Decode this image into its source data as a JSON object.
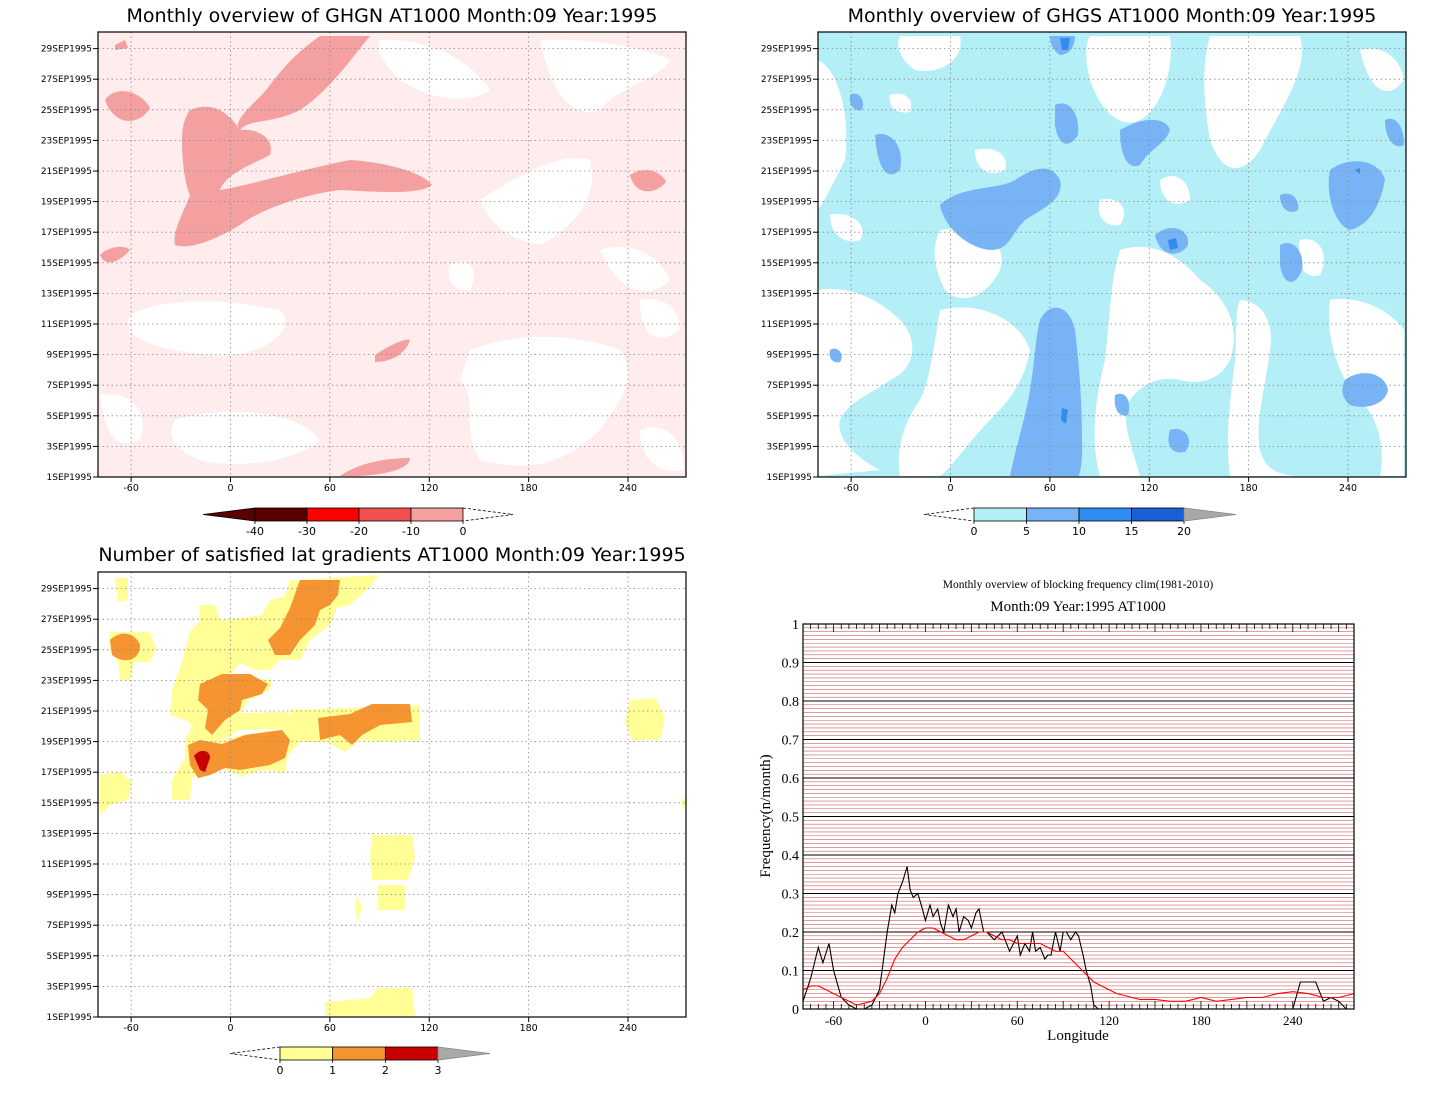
{
  "chart_data": [
    {
      "type": "heatmap",
      "title": "Monthly overview of GHGN AT1000 Month:09 Year:1995",
      "x_ticks": [
        "-60",
        "0",
        "60",
        "120",
        "180",
        "240"
      ],
      "y_ticks": [
        "1SEP1995",
        "3SEP1995",
        "5SEP1995",
        "7SEP1995",
        "9SEP1995",
        "11SEP1995",
        "13SEP1995",
        "15SEP1995",
        "17SEP1995",
        "19SEP1995",
        "21SEP1995",
        "23SEP1995",
        "25SEP1995",
        "27SEP1995",
        "29SEP1995"
      ],
      "xlim": [
        -80,
        275
      ],
      "colorbar": {
        "labels": [
          "-40",
          "-30",
          "-20",
          "-10",
          "0"
        ],
        "colors": [
          "#5a0000",
          "#ff0000",
          "#f25050",
          "#f5a0a0",
          "#ffeaea"
        ],
        "min_arrow": "#5a0000",
        "max_arrow": "none"
      },
      "regions_legend": {
        "background": "#ffecec",
        "strong": "#f5a0a0",
        "zero": "#ffffff"
      }
    },
    {
      "type": "heatmap",
      "title": "Monthly overview of GHGS AT1000 Month:09 Year:1995",
      "x_ticks": [
        "-60",
        "0",
        "60",
        "120",
        "180",
        "240"
      ],
      "y_ticks": [
        "1SEP1995",
        "3SEP1995",
        "5SEP1995",
        "7SEP1995",
        "9SEP1995",
        "11SEP1995",
        "13SEP1995",
        "15SEP1995",
        "17SEP1995",
        "19SEP1995",
        "21SEP1995",
        "23SEP1995",
        "25SEP1995",
        "27SEP1995",
        "29SEP1995"
      ],
      "xlim": [
        -80,
        275
      ],
      "colorbar": {
        "labels": [
          "0",
          "5",
          "10",
          "15",
          "20"
        ],
        "colors": [
          "#b4eef7",
          "#78b4f5",
          "#2f8cf0",
          "#1a5fd6"
        ],
        "min_arrow": "none",
        "max_arrow": "#a8a8a8"
      }
    },
    {
      "type": "heatmap",
      "title": "Number of satisfied lat gradients AT1000 Month:09 Year:1995",
      "x_ticks": [
        "-60",
        "0",
        "60",
        "120",
        "180",
        "240"
      ],
      "y_ticks": [
        "1SEP1995",
        "3SEP1995",
        "5SEP1995",
        "7SEP1995",
        "9SEP1995",
        "11SEP1995",
        "13SEP1995",
        "15SEP1995",
        "17SEP1995",
        "19SEP1995",
        "21SEP1995",
        "23SEP1995",
        "25SEP1995",
        "27SEP1995",
        "29SEP1995"
      ],
      "xlim": [
        -80,
        275
      ],
      "colorbar": {
        "labels": [
          "0",
          "1",
          "2",
          "3"
        ],
        "colors": [
          "#ffff96",
          "#f79432",
          "#c80000"
        ],
        "min_arrow": "none",
        "max_arrow": "#a8a8a8"
      }
    },
    {
      "type": "line",
      "title": "Monthly overview of blocking frequency clim(1981-2010)",
      "subtitle": "Month:09 Year:1995  AT1000",
      "xlabel": "Longitude",
      "ylabel": "Frequency(n/month)",
      "x_ticks": [
        "-60",
        "0",
        "60",
        "120",
        "180",
        "240"
      ],
      "y_ticks": [
        "0",
        "0.1",
        "0.2",
        "0.3",
        "0.4",
        "0.5",
        "0.6",
        "0.7",
        "0.8",
        "0.9",
        "1"
      ],
      "xlim": [
        -80,
        280
      ],
      "ylim": [
        0,
        1
      ],
      "series": [
        {
          "color": "#000000",
          "x": [
            -80,
            -75,
            -70,
            -67,
            -63,
            -60,
            -55,
            -50,
            -45,
            -40,
            -35,
            -30,
            -25,
            -22,
            -20,
            -18,
            -15,
            -12,
            -10,
            -8,
            -5,
            -2,
            0,
            3,
            5,
            8,
            10,
            12,
            15,
            18,
            20,
            22,
            25,
            28,
            30,
            33,
            35,
            38,
            40,
            45,
            50,
            55,
            60,
            62,
            65,
            68,
            70,
            72,
            75,
            78,
            80,
            82,
            85,
            88,
            90,
            92,
            95,
            98,
            100,
            103,
            105,
            108,
            110,
            113,
            115,
            117,
            120,
            125,
            130,
            135,
            140,
            150,
            160,
            170,
            180,
            190,
            200,
            210,
            220,
            230,
            240,
            245,
            250,
            255,
            260,
            265,
            270,
            275
          ],
          "y": [
            0.02,
            0.08,
            0.16,
            0.12,
            0.17,
            0.1,
            0.03,
            0.01,
            0.0,
            0.0,
            0.01,
            0.05,
            0.2,
            0.27,
            0.25,
            0.3,
            0.33,
            0.37,
            0.31,
            0.29,
            0.3,
            0.26,
            0.23,
            0.27,
            0.24,
            0.26,
            0.22,
            0.2,
            0.27,
            0.24,
            0.26,
            0.2,
            0.24,
            0.23,
            0.21,
            0.25,
            0.26,
            0.2,
            0.2,
            0.18,
            0.2,
            0.15,
            0.19,
            0.14,
            0.17,
            0.15,
            0.2,
            0.15,
            0.16,
            0.13,
            0.14,
            0.14,
            0.2,
            0.15,
            0.2,
            0.2,
            0.18,
            0.2,
            0.19,
            0.14,
            0.1,
            0.06,
            0.01,
            0.0,
            0.0,
            0.0,
            0.0,
            0.0,
            0.0,
            0.0,
            0.0,
            0.0,
            0.0,
            0.0,
            0.0,
            0.0,
            0.0,
            0.0,
            0.0,
            0.0,
            0.0,
            0.07,
            0.07,
            0.07,
            0.02,
            0.03,
            0.02,
            0.0
          ]
        },
        {
          "color": "#ff0000",
          "x": [
            -80,
            -75,
            -70,
            -65,
            -60,
            -55,
            -50,
            -45,
            -40,
            -35,
            -30,
            -25,
            -20,
            -15,
            -10,
            -5,
            0,
            5,
            10,
            15,
            20,
            25,
            30,
            35,
            40,
            45,
            50,
            55,
            60,
            65,
            70,
            75,
            80,
            85,
            90,
            95,
            100,
            105,
            110,
            115,
            120,
            125,
            130,
            135,
            140,
            150,
            160,
            170,
            180,
            190,
            200,
            210,
            220,
            230,
            240,
            250,
            260,
            270,
            280
          ],
          "y": [
            0.05,
            0.06,
            0.06,
            0.05,
            0.04,
            0.03,
            0.02,
            0.01,
            0.015,
            0.02,
            0.04,
            0.08,
            0.13,
            0.16,
            0.18,
            0.2,
            0.21,
            0.21,
            0.2,
            0.19,
            0.18,
            0.18,
            0.19,
            0.2,
            0.2,
            0.19,
            0.18,
            0.18,
            0.17,
            0.17,
            0.17,
            0.17,
            0.16,
            0.15,
            0.15,
            0.13,
            0.11,
            0.09,
            0.07,
            0.06,
            0.05,
            0.04,
            0.035,
            0.03,
            0.025,
            0.025,
            0.02,
            0.02,
            0.03,
            0.02,
            0.025,
            0.03,
            0.03,
            0.04,
            0.045,
            0.04,
            0.03,
            0.03,
            0.04
          ]
        }
      ]
    }
  ]
}
